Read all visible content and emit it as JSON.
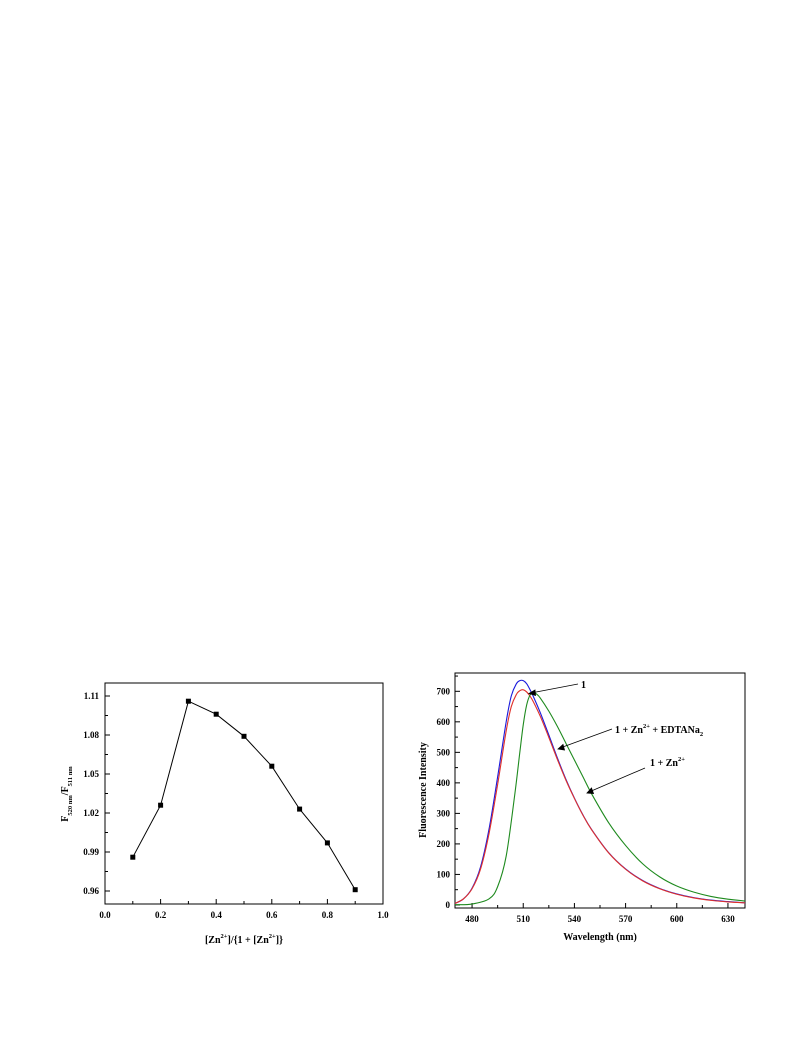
{
  "chart_data": [
    {
      "type": "line",
      "xlim": [
        0.0,
        1.0
      ],
      "ylim": [
        0.95,
        1.12
      ],
      "x_ticks": [
        "0.0",
        "0.2",
        "0.4",
        "0.6",
        "0.8",
        "1.0"
      ],
      "y_ticks": [
        "0.96",
        "0.99",
        "1.02",
        "1.05",
        "1.08",
        "1.11"
      ],
      "y_tick_values": [
        0.96,
        0.99,
        1.02,
        1.05,
        1.08,
        1.11
      ],
      "x_tick_values": [
        0.0,
        0.2,
        0.4,
        0.6,
        0.8,
        1.0
      ],
      "xlabel": {
        "a": "[Zn",
        "b": "2+",
        "c": "]/{1 + [Zn",
        "d": "2+",
        "e": "]}"
      },
      "ylabel": {
        "a": "F",
        "b": "520 nm",
        "c": "/F",
        "d": "511 nm"
      },
      "marker": "square",
      "series": [
        {
          "x": [
            0.1,
            0.2,
            0.3,
            0.4,
            0.5,
            0.6,
            0.7,
            0.8,
            0.9
          ],
          "y": [
            0.986,
            1.026,
            1.106,
            1.096,
            1.079,
            1.056,
            1.023,
            0.997,
            0.961
          ],
          "color": "#000000"
        }
      ]
    },
    {
      "type": "line",
      "xlim": [
        470,
        640
      ],
      "ylim": [
        -10,
        760
      ],
      "x_ticks": [
        "480",
        "510",
        "540",
        "570",
        "600",
        "630"
      ],
      "y_ticks": [
        "0",
        "100",
        "200",
        "300",
        "400",
        "500",
        "600",
        "700"
      ],
      "x_tick_values": [
        480,
        510,
        540,
        570,
        600,
        630
      ],
      "y_tick_values": [
        0,
        100,
        200,
        300,
        400,
        500,
        600,
        700
      ],
      "xlabel": "Wavelength (nm)",
      "ylabel": "Fluorescence Intensity",
      "series": [
        {
          "label": "1",
          "color": "#1a1adc",
          "x": [
            470,
            475,
            480,
            485,
            490,
            495,
            500,
            503,
            506,
            508,
            510,
            512,
            514,
            516,
            520,
            525,
            530,
            535,
            540,
            545,
            550,
            560,
            570,
            580,
            590,
            600,
            610,
            620,
            630,
            640
          ],
          "y": [
            5,
            20,
            55,
            125,
            250,
            420,
            600,
            685,
            725,
            735,
            735,
            725,
            705,
            682,
            630,
            557,
            482,
            412,
            350,
            295,
            248,
            172,
            118,
            80,
            54,
            36,
            24,
            16,
            11,
            7
          ]
        },
        {
          "label": "1 + Zn²⁺ + EDTANa₂",
          "color": "#e0302a",
          "x": [
            470,
            475,
            480,
            485,
            490,
            495,
            500,
            503,
            506,
            508,
            510,
            512,
            514,
            516,
            520,
            525,
            530,
            535,
            540,
            545,
            550,
            560,
            570,
            580,
            590,
            600,
            610,
            620,
            630,
            640
          ],
          "y": [
            5,
            20,
            53,
            118,
            235,
            395,
            570,
            650,
            690,
            702,
            705,
            698,
            684,
            665,
            618,
            549,
            477,
            409,
            349,
            294,
            247,
            171,
            117,
            79,
            53,
            35,
            23,
            15,
            10,
            7
          ]
        },
        {
          "label": "1 + Zn²⁺",
          "color": "#1e8a1e",
          "x": [
            470,
            480,
            490,
            495,
            500,
            505,
            508,
            510,
            512,
            514,
            516,
            518,
            520,
            525,
            530,
            535,
            540,
            545,
            550,
            560,
            570,
            580,
            590,
            600,
            610,
            620,
            630,
            640
          ],
          "y": [
            1,
            3,
            20,
            60,
            160,
            360,
            500,
            590,
            655,
            688,
            695,
            690,
            678,
            635,
            585,
            530,
            475,
            420,
            365,
            270,
            195,
            135,
            92,
            62,
            42,
            28,
            19,
            13
          ]
        }
      ],
      "annotations": [
        {
          "a": "1"
        },
        {
          "a": "1 + Zn",
          "b": "2+",
          "c": " + EDTANa",
          "d": "2"
        },
        {
          "a": "1 + Zn",
          "b": "2+"
        }
      ]
    }
  ]
}
